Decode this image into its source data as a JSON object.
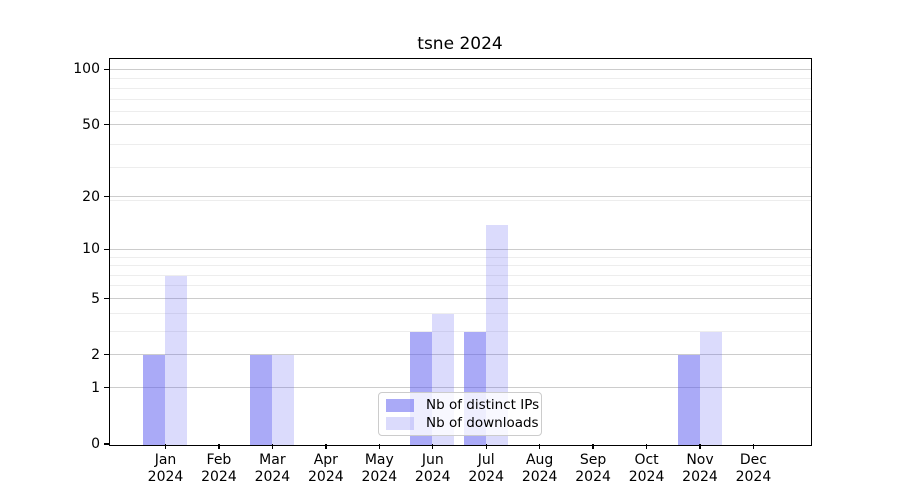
{
  "title": "tsne 2024",
  "chart_data": {
    "type": "bar",
    "title": "tsne 2024",
    "categories": [
      "Jan",
      "Feb",
      "Mar",
      "Apr",
      "May",
      "Jun",
      "Jul",
      "Aug",
      "Sep",
      "Oct",
      "Nov",
      "Dec"
    ],
    "year_label": "2024",
    "series": [
      {
        "key": "distinct-ips",
        "name": "Nb of distinct IPs",
        "color": "#5555f0",
        "alpha": 0.5,
        "values": [
          2,
          0,
          2,
          0,
          0,
          3,
          3,
          0,
          0,
          0,
          2,
          0
        ]
      },
      {
        "key": "downloads",
        "name": "Nb of downloads",
        "color": "#5555f0",
        "alpha": 0.21,
        "values": [
          7,
          0,
          2,
          0,
          0,
          4,
          14,
          0,
          0,
          0,
          3,
          0
        ]
      }
    ],
    "yscale": "log1p",
    "yticks": [
      0,
      1,
      2,
      5,
      10,
      20,
      50,
      100
    ],
    "ylim": [
      0,
      113.6
    ],
    "xlabel": "",
    "ylabel": "",
    "grid": true,
    "legend_position": "lower center",
    "colors": {
      "spine": "#000000",
      "grid_major": "#cccccc",
      "grid_minor": "#ededed",
      "text": "#000000"
    }
  }
}
